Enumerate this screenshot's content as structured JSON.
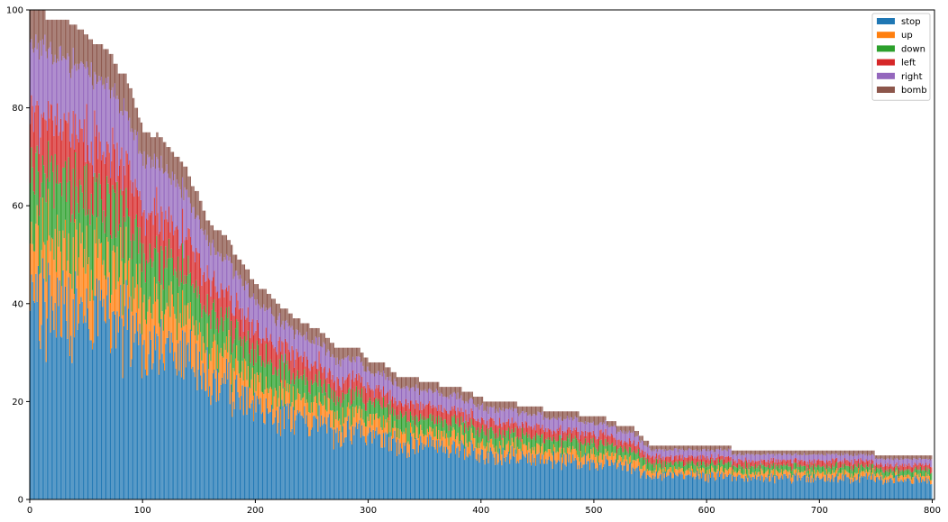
{
  "chart_data": {
    "type": "bar",
    "stacked": true,
    "n_bars": 800,
    "xlim": [
      0,
      802
    ],
    "ylim": [
      0,
      100
    ],
    "xticks": [
      0,
      100,
      200,
      300,
      400,
      500,
      600,
      700,
      800
    ],
    "yticks": [
      0,
      20,
      40,
      60,
      80,
      100
    ],
    "legend": {
      "placement": "upper-right"
    },
    "grid": false,
    "series": [
      {
        "name": "stop",
        "color": "#1f77b4"
      },
      {
        "name": "up",
        "color": "#ff7f0e"
      },
      {
        "name": "down",
        "color": "#2ca02c"
      },
      {
        "name": "left",
        "color": "#d62728"
      },
      {
        "name": "right",
        "color": "#9467bd"
      },
      {
        "name": "bomb",
        "color": "#8c564b"
      }
    ],
    "totals_steps": [
      [
        0,
        100
      ],
      [
        14,
        98
      ],
      [
        35,
        97
      ],
      [
        42,
        96
      ],
      [
        48,
        95
      ],
      [
        52,
        94
      ],
      [
        56,
        93
      ],
      [
        65,
        92
      ],
      [
        70,
        91
      ],
      [
        74,
        89
      ],
      [
        78,
        87
      ],
      [
        86,
        85
      ],
      [
        88,
        84
      ],
      [
        91,
        82
      ],
      [
        93,
        80
      ],
      [
        96,
        78
      ],
      [
        98,
        77
      ],
      [
        100,
        75
      ],
      [
        107,
        74
      ],
      [
        112,
        75
      ],
      [
        114,
        74
      ],
      [
        118,
        73
      ],
      [
        121,
        72
      ],
      [
        125,
        71
      ],
      [
        128,
        70
      ],
      [
        133,
        69
      ],
      [
        136,
        68
      ],
      [
        140,
        66
      ],
      [
        143,
        64
      ],
      [
        146,
        63
      ],
      [
        150,
        61
      ],
      [
        153,
        59
      ],
      [
        156,
        57
      ],
      [
        160,
        56
      ],
      [
        163,
        55
      ],
      [
        170,
        54
      ],
      [
        175,
        53
      ],
      [
        178,
        52
      ],
      [
        180,
        50
      ],
      [
        184,
        49
      ],
      [
        188,
        48
      ],
      [
        191,
        47
      ],
      [
        195,
        45
      ],
      [
        199,
        44
      ],
      [
        203,
        43
      ],
      [
        210,
        42
      ],
      [
        214,
        41
      ],
      [
        218,
        40
      ],
      [
        222,
        39
      ],
      [
        229,
        38
      ],
      [
        233,
        37
      ],
      [
        240,
        36
      ],
      [
        248,
        35
      ],
      [
        257,
        34
      ],
      [
        262,
        33
      ],
      [
        266,
        32
      ],
      [
        270,
        31
      ],
      [
        293,
        30
      ],
      [
        296,
        29
      ],
      [
        300,
        28
      ],
      [
        315,
        27
      ],
      [
        320,
        26
      ],
      [
        325,
        25
      ],
      [
        345,
        24
      ],
      [
        363,
        23
      ],
      [
        383,
        22
      ],
      [
        393,
        21
      ],
      [
        402,
        20
      ],
      [
        432,
        19
      ],
      [
        455,
        18
      ],
      [
        487,
        17
      ],
      [
        511,
        16
      ],
      [
        520,
        15
      ],
      [
        536,
        14
      ],
      [
        540,
        13
      ],
      [
        544,
        12
      ],
      [
        549,
        11
      ],
      [
        622,
        10
      ],
      [
        704,
        10
      ],
      [
        749,
        9
      ],
      [
        800,
        9
      ]
    ]
  }
}
